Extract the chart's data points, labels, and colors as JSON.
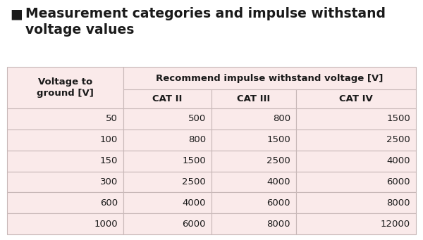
{
  "title_line1": "Measurement categories and impulse withstand",
  "title_line2": "voltage values",
  "title_icon_color": "#1a1a1a",
  "title_fontsize": 13.5,
  "title_fontweight": "bold",
  "bg_color": "#ffffff",
  "header_bg": "#faeaea",
  "col1_header": "Voltage to\nground [V]",
  "col2_header": "Recommend impulse withstand voltage [V]",
  "cat_headers": [
    "CAT II",
    "CAT III",
    "CAT IV"
  ],
  "voltage_col": [
    "50",
    "100",
    "150",
    "300",
    "600",
    "1000"
  ],
  "cat2_col": [
    "500",
    "800",
    "1500",
    "2500",
    "4000",
    "6000"
  ],
  "cat3_col": [
    "800",
    "1500",
    "2500",
    "4000",
    "6000",
    "8000"
  ],
  "cat4_col": [
    "1500",
    "2500",
    "4000",
    "6000",
    "8000",
    "12000"
  ],
  "row_bg": "#faeaea",
  "row_sep_color": "#e0d0d0",
  "text_color": "#1a1a1a",
  "border_color": "#c8b8b8",
  "header_fontsize": 9.5,
  "data_fontsize": 9.5,
  "fig_width": 6.0,
  "fig_height": 3.41,
  "dpi": 100
}
